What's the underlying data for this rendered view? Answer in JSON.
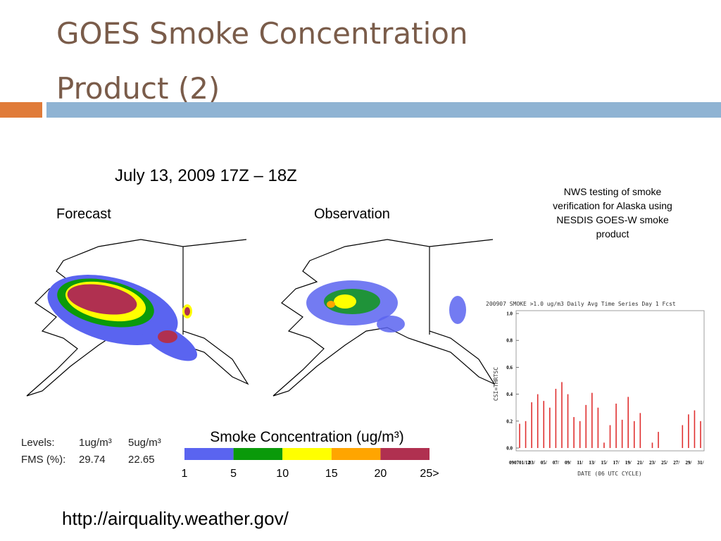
{
  "title_lines": [
    "GOES Smoke Concentration",
    "Product (2)"
  ],
  "date": "July 13, 2009 17Z – 18Z",
  "panels": [
    "Forecast",
    "Observation"
  ],
  "note": "NWS testing of smoke verification for Alaska using NESDIS GOES-W smoke product",
  "levels_table": {
    "rows": [
      [
        "Levels:",
        "1ug/m³",
        "5ug/m³"
      ],
      [
        "FMS (%):",
        "29.74",
        "22.65"
      ]
    ]
  },
  "colorbar": {
    "title": "Smoke Concentration (ug/m³)",
    "ticks": [
      1,
      5,
      10,
      15,
      20,
      {
        "value": 25,
        "label": "25>"
      }
    ],
    "colors": [
      "#5a64f0",
      "#0a9a0a",
      "#ffff00",
      "#ffa500",
      "#b03050"
    ]
  },
  "url": "http://airquality.weather.gov/",
  "chart_data": {
    "type": "bar",
    "title": "200907 SMOKE >1.0 ug/m3 Daily Avg Time Series Day 1 Fcst",
    "y_label": "CSI=THRTSC",
    "x_label": "DATE (06 UTC CYCLE)",
    "categories": [
      "090701/12",
      null,
      "03/",
      null,
      "05/",
      null,
      "07/",
      null,
      "09/",
      null,
      "11/",
      null,
      "13/",
      null,
      "15/",
      null,
      "17/",
      null,
      "19/",
      null,
      "21/",
      null,
      "23/",
      null,
      "25/",
      null,
      "27/",
      null,
      "29/",
      null,
      "31/"
    ],
    "values": [
      0.18,
      0.2,
      0.34,
      0.4,
      0.35,
      0.3,
      0.44,
      0.49,
      0.4,
      0.23,
      0.2,
      0.32,
      0.41,
      0.3,
      0.04,
      0.17,
      0.33,
      0.21,
      0.38,
      0.2,
      0.26,
      0,
      0.04,
      0.12,
      null,
      0,
      null,
      0.17,
      0.25,
      0.28,
      0.2
    ],
    "color": "#e03030",
    "ylim": [
      0,
      1
    ],
    "yticks": [
      {
        "value": 0,
        "label": "0.0"
      },
      0.2,
      0.4,
      0.6,
      0.8,
      {
        "value": 1,
        "label": "1.0"
      }
    ]
  }
}
